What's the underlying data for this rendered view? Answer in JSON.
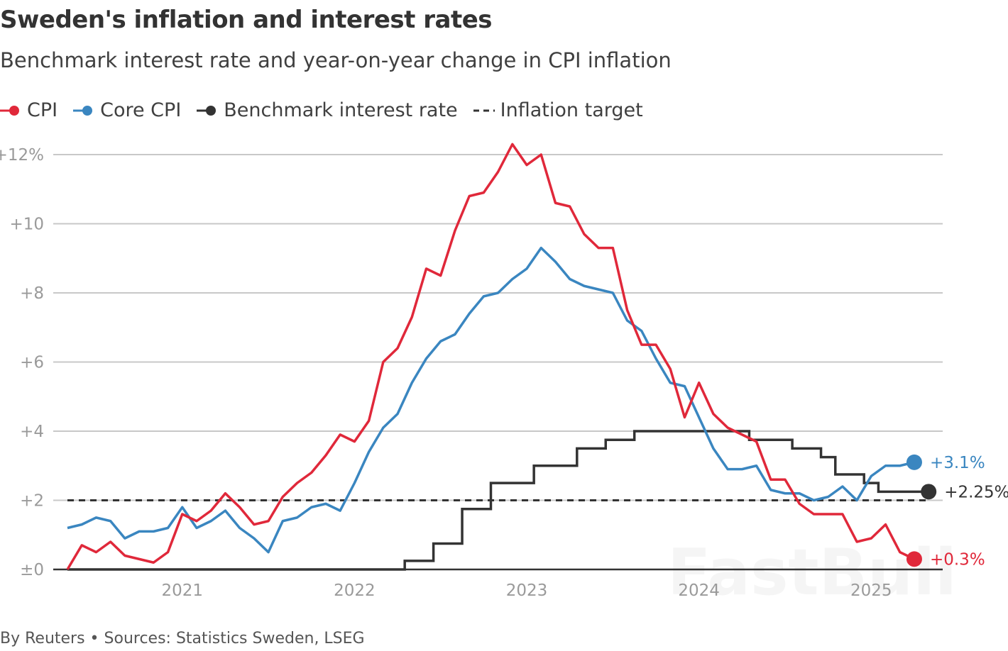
{
  "chart_data": {
    "type": "line",
    "title": "Sweden's inflation and interest rates",
    "subtitle": "Benchmark interest rate and year-on-year change in CPI inflation",
    "source": "By Reuters • Sources: Statistics Sweden, LSEG",
    "watermark": "FastBull",
    "x_start": "2020-05",
    "x_ticks": [
      "2021",
      "2022",
      "2023",
      "2024",
      "2025"
    ],
    "ylim": [
      0,
      12
    ],
    "y_ticks": [
      {
        "value": 12,
        "label": "+12%"
      },
      {
        "value": 10,
        "label": "+10"
      },
      {
        "value": 8,
        "label": "+8"
      },
      {
        "value": 6,
        "label": "+6"
      },
      {
        "value": 4,
        "label": "+4"
      },
      {
        "value": 2,
        "label": "+2"
      },
      {
        "value": 0,
        "label": "±0"
      }
    ],
    "grid": true,
    "legend_position": "top-left",
    "series": [
      {
        "name": "CPI",
        "color": "#e0283a",
        "style": "line",
        "values": [
          0.0,
          0.7,
          0.5,
          0.8,
          0.4,
          0.3,
          0.2,
          0.5,
          1.6,
          1.4,
          1.7,
          2.2,
          1.8,
          1.3,
          1.4,
          2.1,
          2.5,
          2.8,
          3.3,
          3.9,
          3.7,
          4.3,
          6.0,
          6.4,
          7.3,
          8.7,
          8.5,
          9.8,
          10.8,
          10.9,
          11.5,
          12.3,
          11.7,
          12.0,
          10.6,
          10.5,
          9.7,
          9.3,
          9.3,
          7.5,
          6.5,
          6.5,
          5.8,
          4.4,
          5.4,
          4.5,
          4.1,
          3.9,
          3.7,
          2.6,
          2.6,
          1.9,
          1.6,
          1.6,
          1.6,
          0.8,
          0.9,
          1.3,
          0.5,
          0.3
        ],
        "end_label": "+0.3%"
      },
      {
        "name": "Core CPI",
        "color": "#3a86c0",
        "style": "line",
        "values": [
          1.2,
          1.3,
          1.5,
          1.4,
          0.9,
          1.1,
          1.1,
          1.2,
          1.8,
          1.2,
          1.4,
          1.7,
          1.2,
          0.9,
          0.5,
          1.4,
          1.5,
          1.8,
          1.9,
          1.7,
          2.5,
          3.4,
          4.1,
          4.5,
          5.4,
          6.1,
          6.6,
          6.8,
          7.4,
          7.9,
          8.0,
          8.4,
          8.7,
          9.3,
          8.9,
          8.4,
          8.2,
          8.1,
          8.0,
          7.2,
          6.9,
          6.1,
          5.4,
          5.3,
          4.4,
          3.5,
          2.9,
          2.9,
          3.0,
          2.3,
          2.2,
          2.2,
          2.0,
          2.1,
          2.4,
          2.0,
          2.7,
          3.0,
          3.0,
          3.1
        ],
        "end_label": "+3.1%"
      },
      {
        "name": "Benchmark interest rate",
        "color": "#333333",
        "style": "step",
        "values": [
          0,
          0,
          0,
          0,
          0,
          0,
          0,
          0,
          0,
          0,
          0,
          0,
          0,
          0,
          0,
          0,
          0,
          0,
          0,
          0,
          0,
          0,
          0,
          0,
          0.25,
          0.25,
          0.75,
          0.75,
          1.75,
          1.75,
          2.5,
          2.5,
          2.5,
          3.0,
          3.0,
          3.0,
          3.5,
          3.5,
          3.75,
          3.75,
          4.0,
          4.0,
          4.0,
          4.0,
          4.0,
          4.0,
          4.0,
          4.0,
          3.75,
          3.75,
          3.75,
          3.5,
          3.5,
          3.25,
          2.75,
          2.75,
          2.5,
          2.25,
          2.25,
          2.25
        ],
        "end_label": "+2.25%"
      },
      {
        "name": "Inflation target",
        "color": "#333333",
        "style": "dashed",
        "value": 2
      }
    ]
  }
}
